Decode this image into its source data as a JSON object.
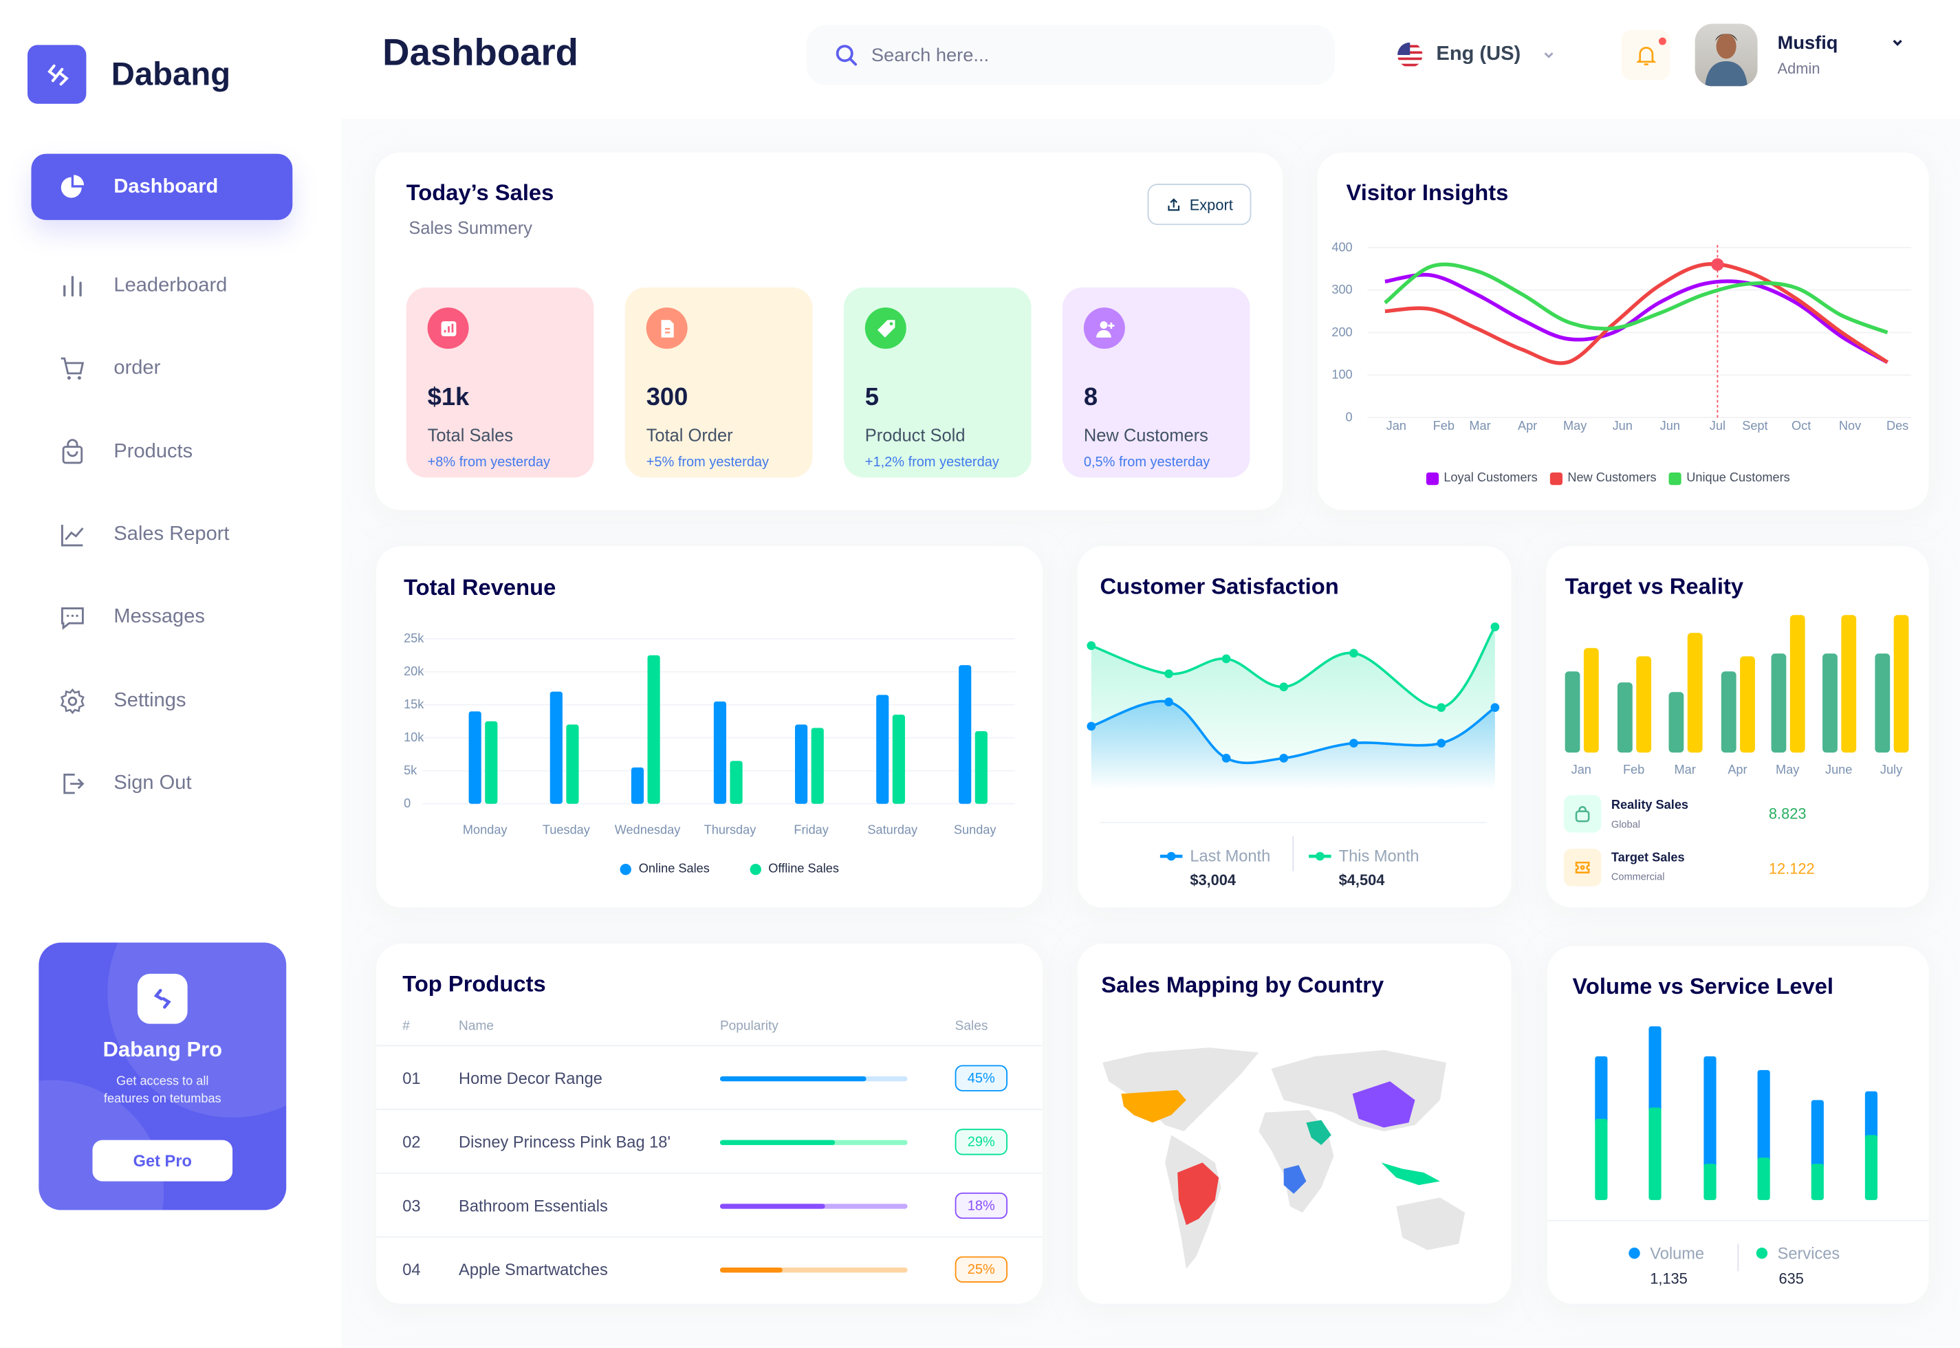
{
  "app": {
    "name": "Dabang",
    "accent": "#5D5FEF"
  },
  "sidebar": {
    "items": [
      {
        "label": "Dashboard",
        "icon": "pie-chart-icon",
        "active": true
      },
      {
        "label": "Leaderboard",
        "icon": "bar-chart-icon"
      },
      {
        "label": "order",
        "icon": "cart-icon"
      },
      {
        "label": "Products",
        "icon": "shopping-bag-icon"
      },
      {
        "label": "Sales Report",
        "icon": "line-chart-icon"
      },
      {
        "label": "Messages",
        "icon": "message-icon"
      },
      {
        "label": "Settings",
        "icon": "gear-icon"
      },
      {
        "label": "Sign Out",
        "icon": "sign-out-icon"
      }
    ],
    "pro": {
      "title": "Dabang Pro",
      "text1": "Get access to all",
      "text2": "features on tetumbas",
      "button": "Get Pro"
    }
  },
  "header": {
    "title": "Dashboard",
    "search_placeholder": "Search here...",
    "language": "Eng (US)",
    "user": {
      "name": "Musfiq",
      "role": "Admin"
    },
    "has_notification": true
  },
  "todays_sales": {
    "title": "Today’s Sales",
    "subtitle": "Sales Summery",
    "export": "Export",
    "stats": [
      {
        "value": "$1k",
        "label": "Total Sales",
        "change": "+8% from yesterday",
        "bg": "#FFE2E5",
        "icon_bg": "#FA5A7D",
        "icon": "chart-icon"
      },
      {
        "value": "300",
        "label": "Total Order",
        "change": "+5% from yesterday",
        "bg": "#FFF4DE",
        "icon_bg": "#FF947A",
        "icon": "document-icon"
      },
      {
        "value": "5",
        "label": "Product Sold",
        "change": "+1,2% from yesterday",
        "bg": "#DCFCE7",
        "icon_bg": "#3CD856",
        "icon": "tag-icon"
      },
      {
        "value": "8",
        "label": "New Customers",
        "change": "0,5% from yesterday",
        "bg": "#F3E8FF",
        "icon_bg": "#BF83FF",
        "icon": "user-plus-icon"
      }
    ]
  },
  "chart_data": [
    {
      "id": "visitor",
      "type": "line",
      "title": "Visitor Insights",
      "categories": [
        "Jan",
        "Feb",
        "Mar",
        "Apr",
        "May",
        "Jun",
        "Jun",
        "Jul",
        "Sept",
        "Oct",
        "Nov",
        "Des"
      ],
      "yticks": [
        "0",
        "100",
        "200",
        "300",
        "400"
      ],
      "ylim": [
        0,
        400
      ],
      "grid": true,
      "legend": "bottom",
      "highlight": {
        "series": "New Customers",
        "category": "Jul",
        "value": 360
      },
      "series": [
        {
          "name": "Loyal Customers",
          "color": "#A700FF",
          "values": [
            320,
            335,
            290,
            230,
            185,
            200,
            270,
            315,
            315,
            270,
            190,
            130
          ]
        },
        {
          "name": "New Customers",
          "color": "#EF4444",
          "values": [
            250,
            255,
            210,
            160,
            130,
            220,
            310,
            360,
            340,
            280,
            200,
            130
          ]
        },
        {
          "name": "Unique Customers",
          "color": "#3CD856",
          "values": [
            270,
            355,
            345,
            290,
            225,
            210,
            245,
            290,
            315,
            305,
            240,
            200
          ]
        }
      ]
    },
    {
      "id": "revenue",
      "type": "bar",
      "title": "Total Revenue",
      "categories": [
        "Monday",
        "Tuesday",
        "Wednesday",
        "Thursday",
        "Friday",
        "Saturday",
        "Sunday"
      ],
      "yticks": [
        "0",
        "5k",
        "10k",
        "15k",
        "20k",
        "25k"
      ],
      "ylim": [
        0,
        25000
      ],
      "grid": true,
      "legend": "bottom",
      "series": [
        {
          "name": "Online Sales",
          "color": "#0095FF",
          "values": [
            14000,
            17000,
            5500,
            15500,
            12000,
            16500,
            21000
          ]
        },
        {
          "name": "Offline Sales",
          "color": "#00E096",
          "values": [
            12500,
            12000,
            22500,
            6500,
            11500,
            13500,
            11000
          ]
        }
      ]
    },
    {
      "id": "satisfaction",
      "type": "area",
      "title": "Customer Satisfaction",
      "legend": "bottom",
      "series": [
        {
          "name": "Last Month",
          "total": "$3,004",
          "color": "#0095FF",
          "values": [
            44,
            57,
            27,
            27,
            35,
            35,
            54
          ]
        },
        {
          "name": "This Month",
          "total": "$4,504",
          "color": "#07E098",
          "values": [
            87,
            72,
            80,
            65,
            83,
            54,
            97
          ]
        }
      ]
    },
    {
      "id": "target",
      "type": "bar",
      "title": "Target vs Reality",
      "categories": [
        "Jan",
        "Feb",
        "Mar",
        "Apr",
        "May",
        "June",
        "July"
      ],
      "series": [
        {
          "name": "Reality Sales",
          "sub": "Global",
          "total": "8.823",
          "color": "#4AB58E",
          "values": [
            59,
            51,
            44,
            59,
            72,
            72,
            72
          ]
        },
        {
          "name": "Target Sales",
          "sub": "Commercial",
          "total": "12.122",
          "color": "#FFCF00",
          "values": [
            76,
            70,
            87,
            70,
            100,
            100,
            100
          ]
        }
      ]
    },
    {
      "id": "volume",
      "type": "stacked-bar",
      "title": "Volume vs Service Level",
      "legend": "bottom",
      "series": [
        {
          "name": "Volume",
          "total": "1,135",
          "color": "#0095FF",
          "values": [
            50,
            65,
            86,
            70,
            51,
            35
          ]
        },
        {
          "name": "Services",
          "total": "635",
          "color": "#00E096",
          "values": [
            65,
            74,
            29,
            34,
            29,
            52
          ]
        }
      ]
    }
  ],
  "top_products": {
    "title": "Top Products",
    "columns": [
      "#",
      "Name",
      "Popularity",
      "Sales"
    ],
    "rows": [
      {
        "num": "01",
        "name": "Home Decor Range",
        "popularity": 0.78,
        "sales": "45%",
        "color": "#0095FF",
        "track": "#CDE7FF"
      },
      {
        "num": "02",
        "name": "Disney Princess Pink Bag 18'",
        "popularity": 0.61,
        "sales": "29%",
        "color": "#00E096",
        "track": "#8CFAC7"
      },
      {
        "num": "03",
        "name": "Bathroom Essentials",
        "popularity": 0.56,
        "sales": "18%",
        "color": "#884DFF",
        "track": "#C5A8FF"
      },
      {
        "num": "04",
        "name": "Apple Smartwatches",
        "popularity": 0.33,
        "sales": "25%",
        "color": "#FF8F0D",
        "track": "#FFD5A4"
      }
    ]
  },
  "sales_map": {
    "title": "Sales Mapping by Country",
    "highlights": [
      {
        "region": "United States",
        "color": "#FFA800"
      },
      {
        "region": "Brazil",
        "color": "#EF4444"
      },
      {
        "region": "China",
        "color": "#884DFF"
      },
      {
        "region": "Saudi Arabia",
        "color": "#16C098"
      },
      {
        "region": "DR Congo",
        "color": "#4079ED"
      },
      {
        "region": "Indonesia",
        "color": "#00E096"
      }
    ]
  }
}
